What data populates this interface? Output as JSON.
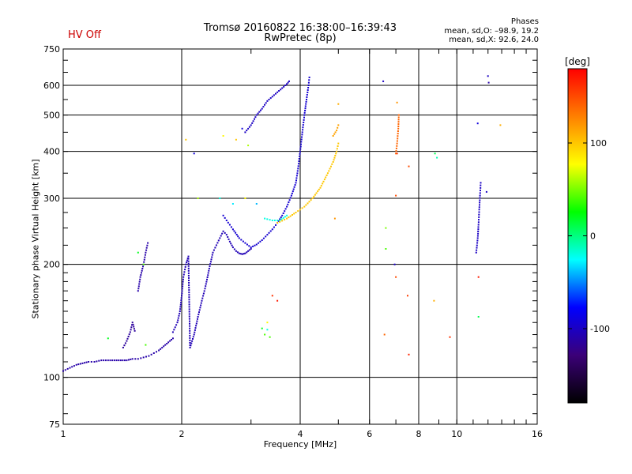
{
  "header": {
    "hv_status": "HV Off",
    "hv_color": "#cc0000",
    "title_line1": "Tromsø 20160822 16:38:00–16:39:43",
    "title_line2": "RwPretec (8p)",
    "phase_title": "Phases",
    "phase_stats_o": "mean, sd,O: –98.9, 19.2",
    "phase_stats_x": "mean, sd,X:  92.6, 24.0"
  },
  "chart_data": {
    "type": "scatter",
    "title": "Tromsø 20160822 16:38:00–16:39:43",
    "subtitle": "RwPretec (8p)",
    "xlabel": "Frequency [MHz]",
    "ylabel": "Stationary phase Virtual Height [km]",
    "x_scale": "log",
    "y_scale": "log",
    "xlim": [
      1,
      16
    ],
    "ylim": [
      75,
      750
    ],
    "x_ticks": [
      1,
      2,
      4,
      6,
      8,
      10,
      16
    ],
    "x_tick_labels": [
      "1",
      "2",
      "4",
      "6",
      "8",
      "10",
      "16"
    ],
    "y_ticks": [
      75,
      100,
      200,
      300,
      400,
      500,
      600,
      750
    ],
    "y_tick_labels": [
      "75",
      "100",
      "200",
      "300",
      "400",
      "500",
      "600",
      "750"
    ],
    "x_grid": [
      2,
      4,
      6,
      8,
      10
    ],
    "y_grid": [
      100,
      200,
      300,
      400,
      500,
      600
    ],
    "colorbar": {
      "label": "[deg]",
      "range": [
        -180,
        180
      ],
      "ticks": [
        100,
        0,
        -100
      ],
      "tick_labels": [
        "100",
        "0",
        "-100"
      ],
      "colors": [
        "#000000",
        "#3b0078",
        "#0000ff",
        "#00ffff",
        "#00ff00",
        "#ffff00",
        "#ff8000",
        "#ff0000"
      ]
    },
    "traces": [
      {
        "phase": -110,
        "points": [
          [
            1.0,
            104
          ],
          [
            1.04,
            106
          ],
          [
            1.08,
            108
          ],
          [
            1.12,
            109
          ],
          [
            1.16,
            110
          ],
          [
            1.2,
            110
          ],
          [
            1.25,
            111
          ],
          [
            1.3,
            111
          ],
          [
            1.35,
            111
          ],
          [
            1.4,
            111
          ],
          [
            1.45,
            111
          ],
          [
            1.5,
            112
          ],
          [
            1.55,
            112
          ],
          [
            1.6,
            113
          ],
          [
            1.65,
            114
          ],
          [
            1.7,
            116
          ],
          [
            1.75,
            118
          ],
          [
            1.8,
            121
          ],
          [
            1.85,
            124
          ],
          [
            1.9,
            127
          ]
        ]
      },
      {
        "phase": -115,
        "points": [
          [
            1.42,
            120
          ],
          [
            1.45,
            125
          ],
          [
            1.48,
            132
          ],
          [
            1.5,
            140
          ],
          [
            1.52,
            133
          ]
        ]
      },
      {
        "phase": -110,
        "points": [
          [
            1.55,
            170
          ],
          [
            1.57,
            185
          ],
          [
            1.6,
            200
          ],
          [
            1.62,
            215
          ],
          [
            1.64,
            228
          ]
        ]
      },
      {
        "phase": -105,
        "points": [
          [
            1.9,
            132
          ],
          [
            1.95,
            140
          ],
          [
            1.98,
            150
          ],
          [
            2.0,
            165
          ],
          [
            2.02,
            185
          ],
          [
            2.05,
            200
          ],
          [
            2.08,
            210
          ],
          [
            2.1,
            120
          ],
          [
            2.15,
            130
          ],
          [
            2.2,
            145
          ],
          [
            2.25,
            160
          ],
          [
            2.3,
            175
          ],
          [
            2.35,
            195
          ],
          [
            2.4,
            215
          ],
          [
            2.45,
            225
          ],
          [
            2.5,
            235
          ],
          [
            2.55,
            245
          ],
          [
            2.6,
            240
          ],
          [
            2.65,
            230
          ],
          [
            2.7,
            222
          ],
          [
            2.75,
            217
          ],
          [
            2.8,
            214
          ],
          [
            2.85,
            213
          ],
          [
            2.9,
            214
          ],
          [
            2.95,
            217
          ],
          [
            3.0,
            220
          ]
        ]
      },
      {
        "phase": -95,
        "points": [
          [
            2.55,
            270
          ],
          [
            2.6,
            262
          ],
          [
            2.65,
            255
          ],
          [
            2.7,
            248
          ],
          [
            2.8,
            235
          ],
          [
            2.9,
            228
          ],
          [
            3.0,
            222
          ],
          [
            3.1,
            226
          ],
          [
            3.2,
            232
          ],
          [
            3.3,
            240
          ],
          [
            3.4,
            248
          ],
          [
            3.5,
            258
          ],
          [
            3.6,
            270
          ],
          [
            3.7,
            285
          ],
          [
            3.8,
            305
          ],
          [
            3.9,
            330
          ],
          [
            3.95,
            360
          ],
          [
            4.0,
            400
          ],
          [
            4.05,
            450
          ],
          [
            4.1,
            500
          ],
          [
            4.15,
            550
          ],
          [
            4.2,
            600
          ],
          [
            4.22,
            630
          ]
        ]
      },
      {
        "phase": -100,
        "points": [
          [
            2.9,
            450
          ],
          [
            3.0,
            470
          ],
          [
            3.1,
            500
          ],
          [
            3.2,
            520
          ],
          [
            3.3,
            545
          ],
          [
            3.4,
            560
          ],
          [
            3.5,
            575
          ],
          [
            3.6,
            590
          ],
          [
            3.7,
            605
          ],
          [
            3.75,
            615
          ]
        ]
      },
      {
        "phase": -20,
        "points": [
          [
            3.25,
            265
          ],
          [
            3.4,
            262
          ],
          [
            3.55,
            262
          ],
          [
            3.7,
            270
          ]
        ]
      },
      {
        "phase": 100,
        "points": [
          [
            3.5,
            258
          ],
          [
            3.7,
            265
          ],
          [
            3.9,
            275
          ],
          [
            4.1,
            285
          ],
          [
            4.3,
            300
          ],
          [
            4.5,
            320
          ],
          [
            4.7,
            350
          ],
          [
            4.85,
            375
          ],
          [
            4.95,
            400
          ],
          [
            5.0,
            420
          ]
        ]
      },
      {
        "phase": 115,
        "points": [
          [
            4.85,
            440
          ],
          [
            4.95,
            455
          ],
          [
            5.0,
            470
          ]
        ]
      },
      {
        "phase": 140,
        "points": [
          [
            7.0,
            395
          ],
          [
            7.05,
            420
          ],
          [
            7.1,
            460
          ],
          [
            7.12,
            500
          ]
        ]
      },
      {
        "phase": -100,
        "points": [
          [
            11.2,
            215
          ],
          [
            11.3,
            235
          ],
          [
            11.35,
            255
          ],
          [
            11.4,
            280
          ],
          [
            11.45,
            305
          ],
          [
            11.5,
            330
          ]
        ]
      }
    ],
    "scatter_points": [
      [
        1.3,
        127,
        20
      ],
      [
        1.62,
        122,
        40
      ],
      [
        1.55,
        215,
        20
      ],
      [
        1.6,
        200,
        40
      ],
      [
        2.5,
        300,
        -20
      ],
      [
        2.7,
        290,
        -30
      ],
      [
        2.9,
        300,
        80
      ],
      [
        3.1,
        290,
        -40
      ],
      [
        3.2,
        135,
        20
      ],
      [
        3.25,
        130,
        40
      ],
      [
        3.3,
        134,
        -20
      ],
      [
        3.35,
        128,
        40
      ],
      [
        3.3,
        140,
        80
      ],
      [
        2.75,
        430,
        100
      ],
      [
        2.85,
        460,
        -90
      ],
      [
        2.95,
        415,
        60
      ],
      [
        2.05,
        430,
        100
      ],
      [
        2.2,
        300,
        60
      ],
      [
        2.55,
        440,
        80
      ],
      [
        2.15,
        395,
        -90
      ],
      [
        3.4,
        165,
        160
      ],
      [
        3.5,
        160,
        170
      ],
      [
        4.9,
        265,
        120
      ],
      [
        5.0,
        535,
        110
      ],
      [
        6.5,
        615,
        -100
      ],
      [
        6.6,
        250,
        50
      ],
      [
        6.6,
        220,
        40
      ],
      [
        6.55,
        130,
        140
      ],
      [
        6.95,
        200,
        -100
      ],
      [
        7.0,
        185,
        150
      ],
      [
        7.05,
        540,
        120
      ],
      [
        7.0,
        305,
        150
      ],
      [
        7.05,
        395,
        160
      ],
      [
        7.5,
        165,
        155
      ],
      [
        7.55,
        115,
        165
      ],
      [
        7.55,
        365,
        150
      ],
      [
        8.75,
        160,
        110
      ],
      [
        8.8,
        395,
        10
      ],
      [
        8.9,
        385,
        -10
      ],
      [
        9.6,
        128,
        160
      ],
      [
        11.3,
        475,
        -90
      ],
      [
        11.35,
        185,
        170
      ],
      [
        11.35,
        145,
        10
      ],
      [
        12.0,
        635,
        -100
      ],
      [
        12.05,
        610,
        -110
      ],
      [
        11.9,
        312,
        -100
      ],
      [
        12.9,
        470,
        110
      ]
    ]
  }
}
